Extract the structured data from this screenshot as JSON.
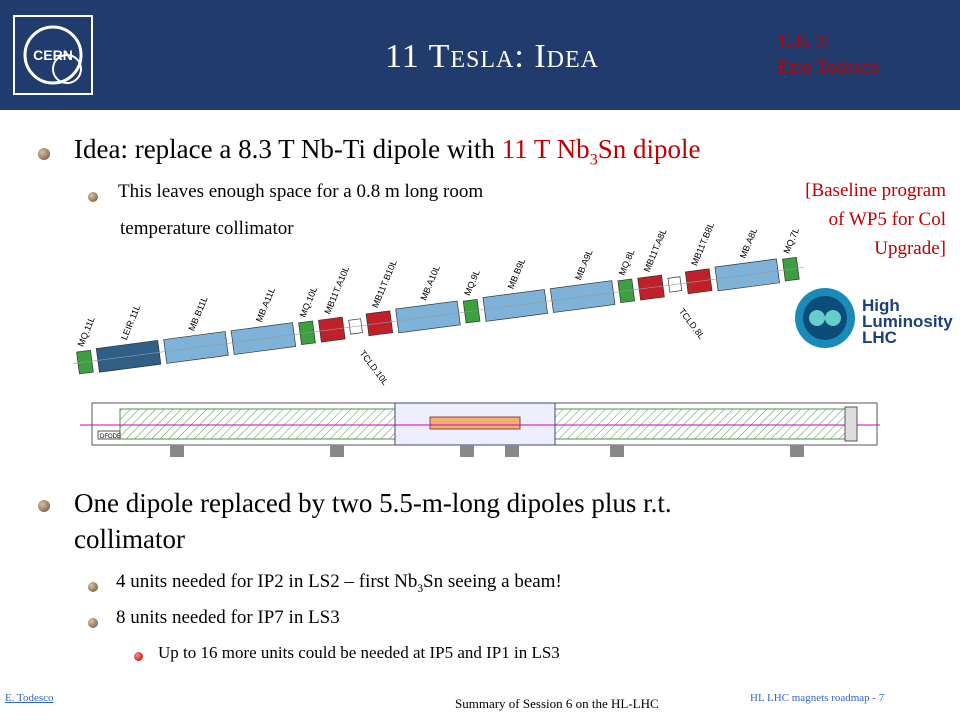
{
  "header": {
    "title": "11 Tesla: Idea",
    "talk": "Talk 2:",
    "speaker": "Ezio Todesco",
    "logo": "CERN"
  },
  "bullets": {
    "main1": {
      "text": "Idea: replace a 8.3 T Nb-Ti dipole with ",
      "highlight": "11 T Nb",
      "sub": "3",
      "highlight_end": "Sn dipole"
    },
    "sub1_line1": "This leaves enough space for a 0.8 m long room",
    "sub1_line2": "temperature collimator",
    "note": [
      "[Baseline program",
      "of WP5 for Col",
      "Upgrade]"
    ],
    "main2_line1": "One dipole replaced by two 5.5-m-long dipoles plus r.t.",
    "main2_line2": "collimator",
    "sub2": {
      "text": "4 units needed for IP2 in LS2 – first Nb",
      "sub": "3",
      "text_end": "Sn seeing a beam!"
    },
    "sub3": "8 units needed for IP7 in LS3",
    "sub4": "Up to 16 more units could be needed at IP5 and IP1 in LS3"
  },
  "diagram": {
    "magnets": [
      "MQ.11L",
      "LEIR.11L",
      "MB.B11L",
      "MB.A11L",
      "MQ.10L",
      "MB11T.A10L",
      "TCLD.10L",
      "MB11T.B10L",
      "MB.A10L",
      "MQ.9L",
      "MB.B9L",
      "MB.A9L",
      "MQ.8L",
      "MB11T.A8L",
      "TCLD.8L",
      "MB11T.B8L",
      "MB.A8L",
      "MQ.7L"
    ],
    "section_label": "DFODE"
  },
  "hl_logo": [
    "High",
    "Luminosity",
    "LHC"
  ],
  "footer": {
    "author": "E. Todesco",
    "center": "Summary of Session 6 on the HL-LHC",
    "right": "HL LHC magnets roadmap - 7"
  }
}
